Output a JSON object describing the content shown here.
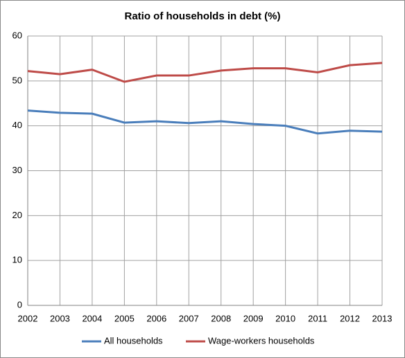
{
  "chart_data": {
    "type": "line",
    "title": "Ratio of households in debt (%)",
    "categories": [
      "2002",
      "2003",
      "2004",
      "2005",
      "2006",
      "2007",
      "2008",
      "2009",
      "2010",
      "2011",
      "2012",
      "2013"
    ],
    "series": [
      {
        "name": "All households",
        "color": "#4a7ebb",
        "values": [
          43.4,
          42.9,
          42.7,
          40.7,
          41.0,
          40.6,
          41.0,
          40.4,
          40.0,
          38.3,
          38.9,
          38.7
        ]
      },
      {
        "name": "Wage-workers households",
        "color": "#be4b48",
        "values": [
          52.2,
          51.5,
          52.5,
          49.8,
          51.2,
          51.2,
          52.3,
          52.8,
          52.8,
          51.9,
          53.5,
          54.0
        ]
      }
    ],
    "ylim": [
      0,
      60
    ],
    "yticks": [
      0,
      10,
      20,
      30,
      40,
      50,
      60
    ],
    "grid": true,
    "legend": "bottom"
  }
}
